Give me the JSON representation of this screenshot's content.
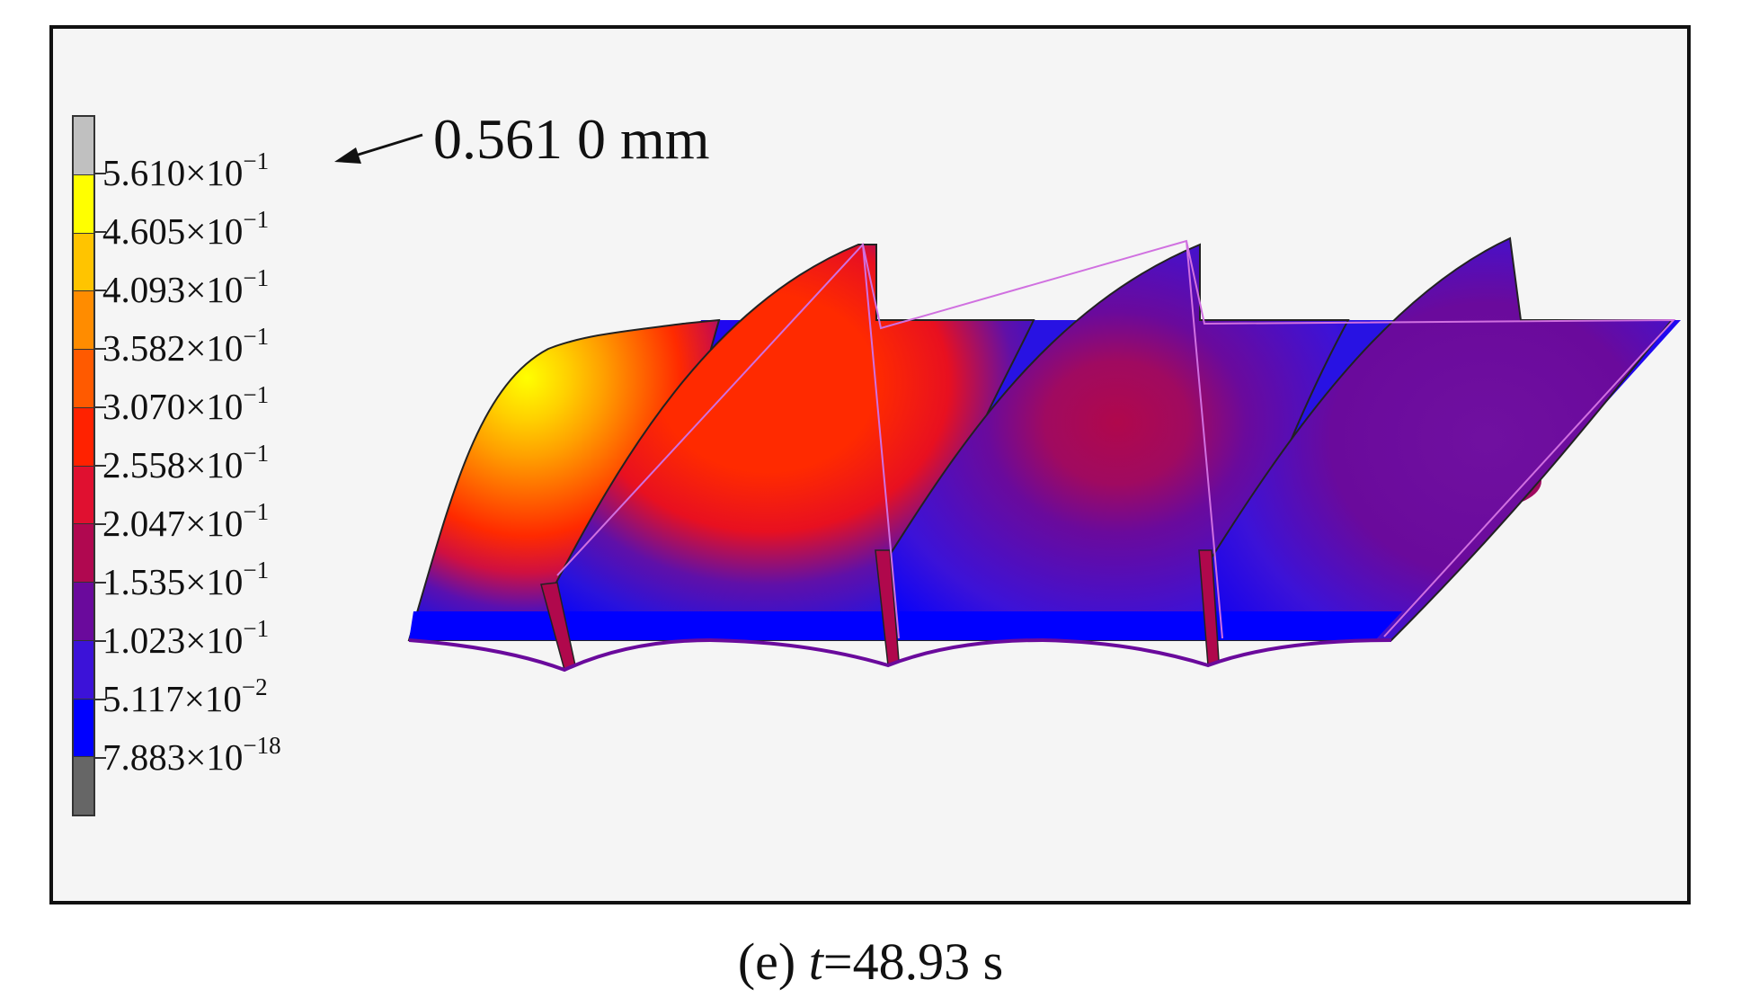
{
  "figure": {
    "caption_label": "(e) ",
    "caption_var": "t",
    "caption_value": "=48.93 s",
    "max_annotation": "0.561 0 mm"
  },
  "legend": {
    "levels": [
      {
        "mantissa": "5.610",
        "exponent": "−1",
        "color": "#ffff00"
      },
      {
        "mantissa": "4.605",
        "exponent": "−1",
        "color": "#ffc400"
      },
      {
        "mantissa": "4.093",
        "exponent": "−1",
        "color": "#ff8c00"
      },
      {
        "mantissa": "3.582",
        "exponent": "−1",
        "color": "#ff5a00"
      },
      {
        "mantissa": "3.070",
        "exponent": "−1",
        "color": "#ff2200"
      },
      {
        "mantissa": "2.558",
        "exponent": "−1",
        "color": "#e01030"
      },
      {
        "mantissa": "2.047",
        "exponent": "−1",
        "color": "#b00850"
      },
      {
        "mantissa": "1.535",
        "exponent": "−1",
        "color": "#6a0a9c"
      },
      {
        "mantissa": "1.023",
        "exponent": "−1",
        "color": "#3c12d8"
      },
      {
        "mantissa": "5.117",
        "exponent": "−2",
        "color": "#0000ff"
      },
      {
        "mantissa": "7.883",
        "exponent": "−18",
        "color": "#666666"
      }
    ],
    "top_cap_color": "#c0c0c0",
    "times": "×10"
  }
}
